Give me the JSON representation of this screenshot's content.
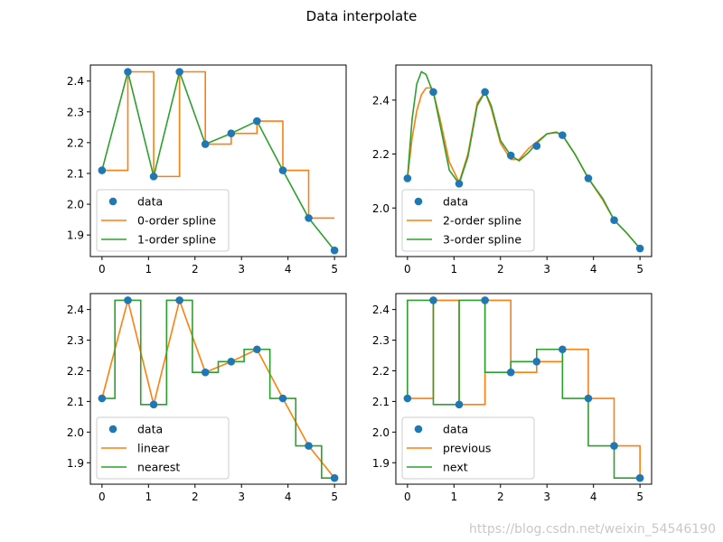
{
  "suptitle": "Data interpolate",
  "watermark": "https://blog.csdn.net/weixin_54546190",
  "colors": {
    "data": "#1f77b4",
    "series1": "#ff7f0e",
    "series2": "#2ca02c"
  },
  "chart_data": [
    {
      "type": "line",
      "title": "",
      "xlabel": "",
      "ylabel": "",
      "xlim": [
        -0.25,
        5.25
      ],
      "ylim": [
        1.83,
        2.452
      ],
      "xticks": [
        0,
        1,
        2,
        3,
        4,
        5
      ],
      "yticks": [
        1.9,
        2.0,
        2.1,
        2.2,
        2.3,
        2.4
      ],
      "legend_position": "lower-left",
      "points": {
        "name": "data",
        "x": [
          0,
          0.556,
          1.111,
          1.667,
          2.222,
          2.778,
          3.333,
          3.889,
          4.444,
          5.0
        ],
        "y": [
          2.11,
          2.43,
          2.09,
          2.43,
          2.195,
          2.23,
          2.27,
          2.11,
          1.955,
          1.85
        ]
      },
      "series": [
        {
          "name": "0-order spline",
          "color_key": "series1",
          "x": [
            0,
            0.556,
            0.556,
            1.111,
            1.111,
            1.667,
            1.667,
            2.222,
            2.222,
            2.778,
            2.778,
            3.333,
            3.333,
            3.889,
            3.889,
            4.444,
            4.444,
            5.0
          ],
          "y": [
            2.11,
            2.11,
            2.43,
            2.43,
            2.09,
            2.09,
            2.43,
            2.43,
            2.195,
            2.195,
            2.23,
            2.23,
            2.27,
            2.27,
            2.11,
            2.11,
            1.955,
            1.955
          ]
        },
        {
          "name": "1-order spline",
          "color_key": "series2",
          "x": [
            0,
            0.556,
            1.111,
            1.667,
            2.222,
            2.778,
            3.333,
            3.889,
            4.444,
            5.0
          ],
          "y": [
            2.11,
            2.43,
            2.09,
            2.43,
            2.195,
            2.23,
            2.27,
            2.11,
            1.955,
            1.85
          ]
        }
      ]
    },
    {
      "type": "line",
      "title": "",
      "xlabel": "",
      "ylabel": "",
      "xlim": [
        -0.25,
        5.25
      ],
      "ylim": [
        1.82,
        2.53
      ],
      "xticks": [
        0,
        1,
        2,
        3,
        4,
        5
      ],
      "yticks": [
        2.0,
        2.2,
        2.4
      ],
      "legend_position": "lower-left",
      "points": {
        "name": "data",
        "x": [
          0,
          0.556,
          1.111,
          1.667,
          2.222,
          2.778,
          3.333,
          3.889,
          4.444,
          5.0
        ],
        "y": [
          2.11,
          2.43,
          2.09,
          2.43,
          2.195,
          2.23,
          2.27,
          2.11,
          1.955,
          1.85
        ]
      },
      "series": [
        {
          "name": "2-order spline",
          "color_key": "series1",
          "x": [
            0,
            0.1,
            0.2,
            0.3,
            0.4,
            0.5,
            0.556,
            0.7,
            0.9,
            1.111,
            1.3,
            1.5,
            1.667,
            1.8,
            2.0,
            2.222,
            2.4,
            2.6,
            2.778,
            3.0,
            3.2,
            3.333,
            3.6,
            3.889,
            4.2,
            4.444,
            4.7,
            5.0
          ],
          "y": [
            2.11,
            2.26,
            2.36,
            2.42,
            2.445,
            2.445,
            2.43,
            2.33,
            2.17,
            2.095,
            2.2,
            2.39,
            2.43,
            2.37,
            2.24,
            2.18,
            2.18,
            2.22,
            2.245,
            2.275,
            2.282,
            2.27,
            2.2,
            2.11,
            2.03,
            1.955,
            1.91,
            1.85
          ]
        },
        {
          "name": "3-order spline",
          "color_key": "series2",
          "x": [
            0,
            0.1,
            0.2,
            0.3,
            0.4,
            0.5,
            0.556,
            0.7,
            0.9,
            1.111,
            1.3,
            1.5,
            1.667,
            1.8,
            2.0,
            2.222,
            2.4,
            2.6,
            2.778,
            3.0,
            3.2,
            3.333,
            3.6,
            3.889,
            4.2,
            4.444,
            4.7,
            5.0
          ],
          "y": [
            2.11,
            2.33,
            2.46,
            2.505,
            2.495,
            2.45,
            2.43,
            2.31,
            2.14,
            2.09,
            2.19,
            2.38,
            2.43,
            2.38,
            2.25,
            2.195,
            2.175,
            2.205,
            2.24,
            2.275,
            2.28,
            2.27,
            2.2,
            2.11,
            2.035,
            1.955,
            1.91,
            1.85
          ]
        }
      ]
    },
    {
      "type": "line",
      "title": "",
      "xlabel": "",
      "ylabel": "",
      "xlim": [
        -0.25,
        5.25
      ],
      "ylim": [
        1.83,
        2.452
      ],
      "xticks": [
        0,
        1,
        2,
        3,
        4,
        5
      ],
      "yticks": [
        1.9,
        2.0,
        2.1,
        2.2,
        2.3,
        2.4
      ],
      "legend_position": "lower-left",
      "points": {
        "name": "data",
        "x": [
          0,
          0.556,
          1.111,
          1.667,
          2.222,
          2.778,
          3.333,
          3.889,
          4.444,
          5.0
        ],
        "y": [
          2.11,
          2.43,
          2.09,
          2.43,
          2.195,
          2.23,
          2.27,
          2.11,
          1.955,
          1.85
        ]
      },
      "series": [
        {
          "name": "linear",
          "color_key": "series1",
          "x": [
            0,
            0.556,
            1.111,
            1.667,
            2.222,
            2.778,
            3.333,
            3.889,
            4.444,
            5.0
          ],
          "y": [
            2.11,
            2.43,
            2.09,
            2.43,
            2.195,
            2.23,
            2.27,
            2.11,
            1.955,
            1.85
          ]
        },
        {
          "name": "nearest",
          "color_key": "series2",
          "x": [
            0,
            0.278,
            0.278,
            0.833,
            0.833,
            1.389,
            1.389,
            1.944,
            1.944,
            2.5,
            2.5,
            3.056,
            3.056,
            3.611,
            3.611,
            4.167,
            4.167,
            4.722,
            4.722,
            5.0
          ],
          "y": [
            2.11,
            2.11,
            2.43,
            2.43,
            2.09,
            2.09,
            2.43,
            2.43,
            2.195,
            2.195,
            2.23,
            2.23,
            2.27,
            2.27,
            2.11,
            2.11,
            1.955,
            1.955,
            1.85,
            1.85
          ]
        }
      ]
    },
    {
      "type": "line",
      "title": "",
      "xlabel": "",
      "ylabel": "",
      "xlim": [
        -0.25,
        5.25
      ],
      "ylim": [
        1.83,
        2.452
      ],
      "xticks": [
        0,
        1,
        2,
        3,
        4,
        5
      ],
      "yticks": [
        1.9,
        2.0,
        2.1,
        2.2,
        2.3,
        2.4
      ],
      "legend_position": "lower-left",
      "points": {
        "name": "data",
        "x": [
          0,
          0.556,
          1.111,
          1.667,
          2.222,
          2.778,
          3.333,
          3.889,
          4.444,
          5.0
        ],
        "y": [
          2.11,
          2.43,
          2.09,
          2.43,
          2.195,
          2.23,
          2.27,
          2.11,
          1.955,
          1.85
        ]
      },
      "series": [
        {
          "name": "previous",
          "color_key": "series1",
          "x": [
            0,
            0.556,
            0.556,
            1.111,
            1.111,
            1.667,
            1.667,
            2.222,
            2.222,
            2.778,
            2.778,
            3.333,
            3.333,
            3.889,
            3.889,
            4.444,
            4.444,
            5.0,
            5.0
          ],
          "y": [
            2.11,
            2.11,
            2.43,
            2.43,
            2.09,
            2.09,
            2.43,
            2.43,
            2.195,
            2.195,
            2.23,
            2.23,
            2.27,
            2.27,
            2.11,
            2.11,
            1.955,
            1.955,
            1.85
          ]
        },
        {
          "name": "next",
          "color_key": "series2",
          "x": [
            0,
            0,
            0.556,
            0.556,
            1.111,
            1.111,
            1.667,
            1.667,
            2.222,
            2.222,
            2.778,
            2.778,
            3.333,
            3.333,
            3.889,
            3.889,
            4.444,
            4.444,
            5.0
          ],
          "y": [
            2.11,
            2.43,
            2.43,
            2.09,
            2.09,
            2.43,
            2.43,
            2.195,
            2.195,
            2.23,
            2.23,
            2.27,
            2.27,
            2.11,
            2.11,
            1.955,
            1.955,
            1.85,
            1.85
          ]
        }
      ]
    }
  ]
}
